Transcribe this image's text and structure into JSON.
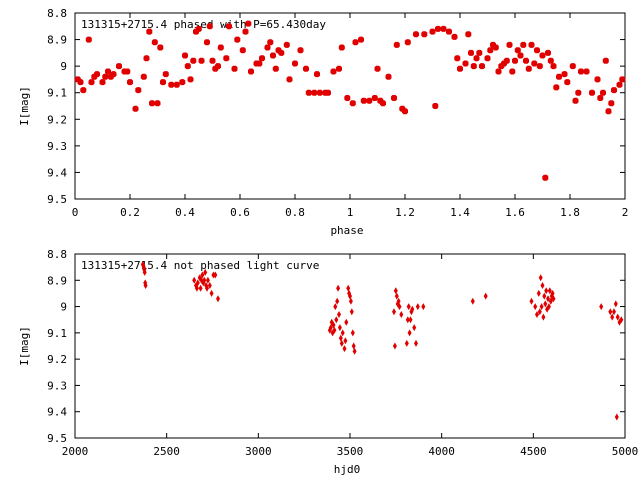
{
  "chart_data": [
    {
      "type": "scatter",
      "title": "131315+2715.4 phased with P=65.430day",
      "xlabel": "phase",
      "ylabel": "I[mag]",
      "xlim": [
        0,
        2
      ],
      "ylim": [
        8.8,
        9.5
      ],
      "y_inverted": true,
      "xticks": [
        "0",
        "0.2",
        "0.4",
        "0.6",
        "0.8",
        "1",
        "1.2",
        "1.4",
        "1.6",
        "1.8",
        "2"
      ],
      "yticks": [
        "8.8",
        "8.9",
        "9",
        "9.1",
        "9.2",
        "9.3",
        "9.4",
        "9.5"
      ],
      "marker_color": "#e00000",
      "points": [
        [
          0.01,
          9.05
        ],
        [
          0.02,
          9.06
        ],
        [
          0.03,
          9.09
        ],
        [
          0.05,
          8.9
        ],
        [
          0.06,
          9.06
        ],
        [
          0.07,
          9.04
        ],
        [
          0.08,
          9.03
        ],
        [
          0.1,
          9.06
        ],
        [
          0.11,
          9.04
        ],
        [
          0.12,
          9.02
        ],
        [
          0.13,
          9.04
        ],
        [
          0.14,
          9.03
        ],
        [
          0.16,
          9.0
        ],
        [
          0.18,
          9.02
        ],
        [
          0.19,
          9.02
        ],
        [
          0.2,
          9.06
        ],
        [
          0.22,
          9.16
        ],
        [
          0.23,
          9.09
        ],
        [
          0.25,
          9.04
        ],
        [
          0.26,
          8.97
        ],
        [
          0.27,
          8.87
        ],
        [
          0.28,
          9.14
        ],
        [
          0.29,
          8.91
        ],
        [
          0.3,
          9.14
        ],
        [
          0.31,
          8.93
        ],
        [
          0.32,
          9.06
        ],
        [
          0.33,
          9.03
        ],
        [
          0.35,
          9.07
        ],
        [
          0.37,
          9.07
        ],
        [
          0.39,
          9.06
        ],
        [
          0.4,
          8.96
        ],
        [
          0.41,
          9.0
        ],
        [
          0.42,
          9.05
        ],
        [
          0.43,
          8.98
        ],
        [
          0.44,
          8.87
        ],
        [
          0.45,
          8.86
        ],
        [
          0.46,
          8.98
        ],
        [
          0.48,
          8.91
        ],
        [
          0.49,
          8.85
        ],
        [
          0.5,
          8.98
        ],
        [
          0.51,
          9.01
        ],
        [
          0.52,
          9.0
        ],
        [
          0.53,
          8.93
        ],
        [
          0.55,
          8.97
        ],
        [
          0.56,
          8.85
        ],
        [
          0.58,
          9.01
        ],
        [
          0.59,
          8.9
        ],
        [
          0.61,
          8.94
        ],
        [
          0.62,
          8.87
        ],
        [
          0.63,
          8.84
        ],
        [
          0.64,
          9.02
        ],
        [
          0.66,
          8.99
        ],
        [
          0.67,
          8.99
        ],
        [
          0.68,
          8.97
        ],
        [
          0.7,
          8.93
        ],
        [
          0.71,
          8.91
        ],
        [
          0.72,
          8.96
        ],
        [
          0.73,
          9.01
        ],
        [
          0.74,
          8.94
        ],
        [
          0.75,
          8.95
        ],
        [
          0.77,
          8.92
        ],
        [
          0.78,
          9.05
        ],
        [
          0.8,
          8.99
        ],
        [
          0.82,
          8.94
        ],
        [
          0.84,
          9.01
        ],
        [
          0.85,
          9.1
        ],
        [
          0.87,
          9.1
        ],
        [
          0.88,
          9.03
        ],
        [
          0.89,
          9.1
        ],
        [
          0.91,
          9.1
        ],
        [
          0.92,
          9.1
        ],
        [
          0.94,
          9.02
        ],
        [
          0.96,
          9.01
        ],
        [
          0.97,
          8.93
        ],
        [
          0.99,
          9.12
        ],
        [
          1.01,
          9.14
        ],
        [
          1.02,
          8.91
        ],
        [
          1.04,
          8.9
        ],
        [
          1.05,
          9.13
        ],
        [
          1.07,
          9.13
        ],
        [
          1.09,
          9.12
        ],
        [
          1.1,
          9.01
        ],
        [
          1.11,
          9.13
        ],
        [
          1.12,
          9.14
        ],
        [
          1.14,
          9.04
        ],
        [
          1.16,
          9.12
        ],
        [
          1.17,
          8.92
        ],
        [
          1.19,
          9.16
        ],
        [
          1.2,
          9.17
        ],
        [
          1.21,
          8.91
        ],
        [
          1.24,
          8.88
        ],
        [
          1.27,
          8.88
        ],
        [
          1.3,
          8.87
        ],
        [
          1.31,
          9.15
        ],
        [
          1.32,
          8.86
        ],
        [
          1.34,
          8.86
        ],
        [
          1.36,
          8.87
        ],
        [
          1.38,
          8.89
        ],
        [
          1.39,
          8.97
        ],
        [
          1.4,
          9.01
        ],
        [
          1.42,
          8.99
        ],
        [
          1.43,
          8.88
        ],
        [
          1.44,
          8.95
        ],
        [
          1.45,
          9.0
        ],
        [
          1.46,
          8.97
        ],
        [
          1.47,
          8.95
        ],
        [
          1.48,
          9.0
        ],
        [
          1.5,
          8.97
        ],
        [
          1.51,
          8.94
        ],
        [
          1.52,
          8.92
        ],
        [
          1.53,
          8.93
        ],
        [
          1.54,
          9.02
        ],
        [
          1.55,
          9.0
        ],
        [
          1.56,
          8.99
        ],
        [
          1.57,
          8.98
        ],
        [
          1.58,
          8.92
        ],
        [
          1.59,
          9.02
        ],
        [
          1.6,
          8.98
        ],
        [
          1.61,
          8.94
        ],
        [
          1.62,
          8.96
        ],
        [
          1.63,
          8.92
        ],
        [
          1.64,
          8.98
        ],
        [
          1.65,
          9.01
        ],
        [
          1.66,
          8.92
        ],
        [
          1.67,
          8.99
        ],
        [
          1.68,
          8.94
        ],
        [
          1.69,
          9.0
        ],
        [
          1.7,
          8.96
        ],
        [
          1.71,
          9.42
        ],
        [
          1.72,
          8.95
        ],
        [
          1.73,
          8.98
        ],
        [
          1.74,
          9.0
        ],
        [
          1.75,
          9.08
        ],
        [
          1.76,
          9.04
        ],
        [
          1.78,
          9.03
        ],
        [
          1.79,
          9.06
        ],
        [
          1.81,
          9.0
        ],
        [
          1.82,
          9.13
        ],
        [
          1.83,
          9.1
        ],
        [
          1.84,
          9.02
        ],
        [
          1.86,
          9.02
        ],
        [
          1.88,
          9.1
        ],
        [
          1.9,
          9.05
        ],
        [
          1.91,
          9.12
        ],
        [
          1.92,
          9.1
        ],
        [
          1.93,
          8.98
        ],
        [
          1.94,
          9.17
        ],
        [
          1.95,
          9.14
        ],
        [
          1.96,
          9.09
        ],
        [
          1.98,
          9.07
        ],
        [
          1.99,
          9.05
        ]
      ]
    },
    {
      "type": "scatter",
      "title": "131315+2715.4 not phased light curve",
      "xlabel": "hjd0",
      "ylabel": "I[mag]",
      "xlim": [
        2000,
        5000
      ],
      "ylim": [
        8.8,
        9.5
      ],
      "y_inverted": true,
      "xticks": [
        "2000",
        "2500",
        "3000",
        "3500",
        "4000",
        "4500",
        "5000"
      ],
      "yticks": [
        "8.8",
        "8.9",
        "9",
        "9.1",
        "9.2",
        "9.3",
        "9.4",
        "9.5"
      ],
      "marker_color": "#e00000",
      "points": [
        [
          2370,
          8.84
        ],
        [
          2375,
          8.85
        ],
        [
          2378,
          8.86
        ],
        [
          2380,
          8.87
        ],
        [
          2383,
          8.91
        ],
        [
          2385,
          8.92
        ],
        [
          2650,
          8.9
        ],
        [
          2660,
          8.92
        ],
        [
          2665,
          8.93
        ],
        [
          2670,
          8.91
        ],
        [
          2680,
          8.89
        ],
        [
          2685,
          8.93
        ],
        [
          2690,
          8.9
        ],
        [
          2695,
          8.88
        ],
        [
          2700,
          8.91
        ],
        [
          2705,
          8.9
        ],
        [
          2710,
          8.87
        ],
        [
          2715,
          8.92
        ],
        [
          2720,
          8.93
        ],
        [
          2725,
          8.9
        ],
        [
          2735,
          8.92
        ],
        [
          2745,
          8.95
        ],
        [
          2755,
          8.88
        ],
        [
          2765,
          8.88
        ],
        [
          2780,
          8.97
        ],
        [
          3390,
          9.09
        ],
        [
          3395,
          9.08
        ],
        [
          3400,
          9.06
        ],
        [
          3405,
          9.1
        ],
        [
          3410,
          9.07
        ],
        [
          3415,
          9.09
        ],
        [
          3420,
          9.0
        ],
        [
          3425,
          9.05
        ],
        [
          3430,
          8.98
        ],
        [
          3435,
          8.93
        ],
        [
          3440,
          9.03
        ],
        [
          3445,
          9.08
        ],
        [
          3450,
          9.12
        ],
        [
          3455,
          9.14
        ],
        [
          3460,
          9.1
        ],
        [
          3470,
          9.16
        ],
        [
          3475,
          9.13
        ],
        [
          3480,
          9.06
        ],
        [
          3490,
          8.93
        ],
        [
          3495,
          8.95
        ],
        [
          3500,
          8.96
        ],
        [
          3505,
          8.98
        ],
        [
          3510,
          9.02
        ],
        [
          3515,
          9.1
        ],
        [
          3520,
          9.15
        ],
        [
          3525,
          9.17
        ],
        [
          3740,
          9.02
        ],
        [
          3745,
          9.15
        ],
        [
          3750,
          8.94
        ],
        [
          3755,
          8.96
        ],
        [
          3760,
          8.99
        ],
        [
          3765,
          8.98
        ],
        [
          3770,
          9.0
        ],
        [
          3780,
          9.03
        ],
        [
          3810,
          9.14
        ],
        [
          3815,
          9.05
        ],
        [
          3820,
          9.0
        ],
        [
          3825,
          9.1
        ],
        [
          3830,
          9.05
        ],
        [
          3835,
          9.02
        ],
        [
          3840,
          9.01
        ],
        [
          3850,
          9.08
        ],
        [
          3860,
          9.14
        ],
        [
          3870,
          9.0
        ],
        [
          3900,
          9.0
        ],
        [
          4170,
          8.98
        ],
        [
          4240,
          8.96
        ],
        [
          4490,
          8.98
        ],
        [
          4510,
          9.0
        ],
        [
          4520,
          9.03
        ],
        [
          4530,
          8.95
        ],
        [
          4535,
          9.02
        ],
        [
          4540,
          8.89
        ],
        [
          4545,
          9.0
        ],
        [
          4550,
          8.92
        ],
        [
          4555,
          9.04
        ],
        [
          4560,
          8.96
        ],
        [
          4565,
          8.99
        ],
        [
          4570,
          8.94
        ],
        [
          4575,
          9.01
        ],
        [
          4580,
          8.97
        ],
        [
          4585,
          9.0
        ],
        [
          4590,
          8.94
        ],
        [
          4595,
          8.98
        ],
        [
          4600,
          8.96
        ],
        [
          4605,
          8.95
        ],
        [
          4610,
          8.97
        ],
        [
          4870,
          9.0
        ],
        [
          4920,
          9.02
        ],
        [
          4930,
          9.04
        ],
        [
          4940,
          9.02
        ],
        [
          4950,
          8.99
        ],
        [
          4955,
          9.42
        ],
        [
          4960,
          9.04
        ],
        [
          4970,
          9.06
        ],
        [
          4980,
          9.05
        ]
      ]
    }
  ]
}
